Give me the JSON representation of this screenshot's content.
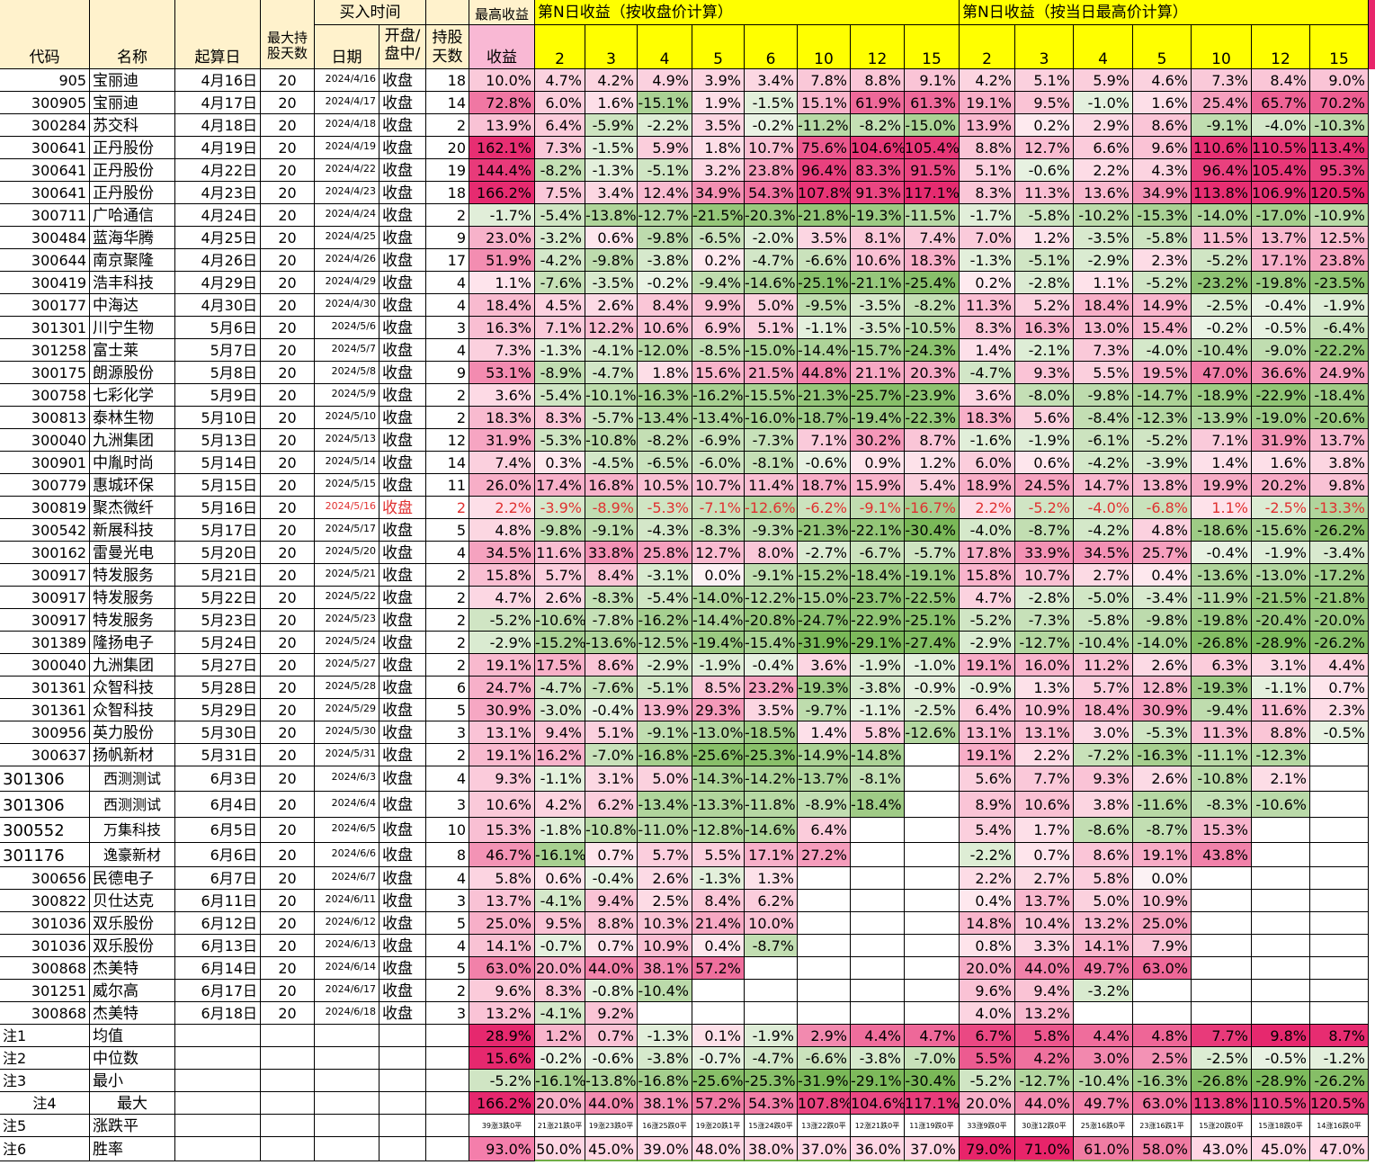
{
  "header": {
    "code": "代码",
    "name": "名称",
    "start_date": "起算日",
    "max_hold": "最大持股天数",
    "buy_time": "买入时间",
    "date": "日期",
    "open_mid": "开盘/盘中/",
    "hold_days": "持股天数",
    "max_profit_top": "最高收益",
    "profit": "收益",
    "group_close": "第N日收益（按收盘价计算）",
    "group_high": "第N日收益（按当日最高价计算）",
    "n_days": [
      "2",
      "3",
      "4",
      "5",
      "6",
      "10",
      "12",
      "15"
    ],
    "n_days_high": [
      "2",
      "3",
      "4",
      "5",
      "10",
      "12",
      "15"
    ]
  },
  "colors": {
    "header_fill": "#fff2cc",
    "profit_header_fill": "#f9b8d4",
    "yellow": "#ffff00",
    "stats_pink": "#ff99cc",
    "red_text": "#e03030",
    "win_border": "#70ad47"
  },
  "rows": [
    [
      "905",
      "宝丽迪",
      "4月16日",
      "20",
      "2024/4/16",
      "收盘",
      "18",
      "10.0%",
      "4.7%",
      "4.2%",
      "4.9%",
      "3.9%",
      "3.4%",
      "7.8%",
      "8.8%",
      "9.1%",
      "4.2%",
      "5.1%",
      "5.9%",
      "4.6%",
      "7.3%",
      "8.4%",
      "9.0%"
    ],
    [
      "300905",
      "宝丽迪",
      "4月17日",
      "20",
      "2024/4/17",
      "收盘",
      "14",
      "72.8%",
      "6.0%",
      "1.6%",
      "-15.1%",
      "1.9%",
      "-1.5%",
      "15.1%",
      "61.9%",
      "61.3%",
      "19.1%",
      "9.5%",
      "-1.0%",
      "1.6%",
      "25.4%",
      "65.7%",
      "70.2%"
    ],
    [
      "300284",
      "苏交科",
      "4月18日",
      "20",
      "2024/4/18",
      "收盘",
      "2",
      "13.9%",
      "6.4%",
      "-5.9%",
      "-2.2%",
      "3.5%",
      "-0.2%",
      "-11.2%",
      "-8.2%",
      "-15.0%",
      "13.9%",
      "0.2%",
      "2.9%",
      "8.6%",
      "-9.1%",
      "-4.0%",
      "-10.3%"
    ],
    [
      "300641",
      "正丹股份",
      "4月19日",
      "20",
      "2024/4/19",
      "收盘",
      "20",
      "162.1%",
      "7.3%",
      "-1.5%",
      "5.9%",
      "1.8%",
      "10.7%",
      "75.6%",
      "104.6%",
      "105.4%",
      "8.8%",
      "12.7%",
      "6.6%",
      "9.6%",
      "110.6%",
      "110.5%",
      "113.4%"
    ],
    [
      "300641",
      "正丹股份",
      "4月22日",
      "20",
      "2024/4/22",
      "收盘",
      "19",
      "144.4%",
      "-8.2%",
      "-1.3%",
      "-5.1%",
      "3.2%",
      "23.8%",
      "96.4%",
      "83.3%",
      "91.5%",
      "5.1%",
      "-0.6%",
      "2.2%",
      "4.3%",
      "96.4%",
      "105.4%",
      "95.3%"
    ],
    [
      "300641",
      "正丹股份",
      "4月23日",
      "20",
      "2024/4/23",
      "收盘",
      "18",
      "166.2%",
      "7.5%",
      "3.4%",
      "12.4%",
      "34.9%",
      "54.3%",
      "107.8%",
      "91.3%",
      "117.1%",
      "8.3%",
      "11.3%",
      "13.6%",
      "34.9%",
      "113.8%",
      "106.9%",
      "120.5%"
    ],
    [
      "300711",
      "广哈通信",
      "4月24日",
      "20",
      "2024/4/24",
      "收盘",
      "2",
      "-1.7%",
      "-5.4%",
      "-13.8%",
      "-12.7%",
      "-21.5%",
      "-20.3%",
      "-21.8%",
      "-19.3%",
      "-11.5%",
      "-1.7%",
      "-5.8%",
      "-10.2%",
      "-15.3%",
      "-14.0%",
      "-17.0%",
      "-10.9%"
    ],
    [
      "300484",
      "蓝海华腾",
      "4月25日",
      "20",
      "2024/4/25",
      "收盘",
      "9",
      "23.0%",
      "-3.2%",
      "0.6%",
      "-9.8%",
      "-6.5%",
      "-2.0%",
      "3.5%",
      "8.1%",
      "7.4%",
      "7.0%",
      "1.2%",
      "-3.5%",
      "-5.8%",
      "11.5%",
      "13.7%",
      "12.5%"
    ],
    [
      "300644",
      "南京聚隆",
      "4月26日",
      "20",
      "2024/4/26",
      "收盘",
      "17",
      "51.9%",
      "-4.2%",
      "-9.8%",
      "-3.8%",
      "0.2%",
      "-4.7%",
      "-6.6%",
      "10.6%",
      "18.3%",
      "-1.3%",
      "-5.1%",
      "-2.9%",
      "2.3%",
      "-5.2%",
      "17.1%",
      "23.8%"
    ],
    [
      "300419",
      "浩丰科技",
      "4月29日",
      "20",
      "2024/4/29",
      "收盘",
      "4",
      "1.1%",
      "-7.6%",
      "-3.5%",
      "-0.2%",
      "-9.4%",
      "-14.6%",
      "-25.1%",
      "-21.1%",
      "-25.4%",
      "0.2%",
      "-2.8%",
      "1.1%",
      "-5.2%",
      "-23.2%",
      "-19.8%",
      "-23.5%"
    ],
    [
      "300177",
      "中海达",
      "4月30日",
      "20",
      "2024/4/30",
      "收盘",
      "4",
      "18.4%",
      "4.5%",
      "2.6%",
      "8.4%",
      "9.9%",
      "5.0%",
      "-9.5%",
      "-3.5%",
      "-8.2%",
      "11.3%",
      "5.2%",
      "18.4%",
      "14.9%",
      "-2.5%",
      "-0.4%",
      "-1.9%"
    ],
    [
      "301301",
      "川宁生物",
      "5月6日",
      "20",
      "2024/5/6",
      "收盘",
      "3",
      "16.3%",
      "7.1%",
      "12.2%",
      "10.6%",
      "6.9%",
      "5.1%",
      "-1.1%",
      "-3.5%",
      "-10.5%",
      "8.3%",
      "16.3%",
      "13.0%",
      "15.4%",
      "-0.2%",
      "-0.5%",
      "-6.4%"
    ],
    [
      "301258",
      "富士莱",
      "5月7日",
      "20",
      "2024/5/7",
      "收盘",
      "4",
      "7.3%",
      "-1.3%",
      "-4.1%",
      "-12.0%",
      "-8.5%",
      "-15.0%",
      "-14.4%",
      "-15.7%",
      "-24.3%",
      "1.4%",
      "-2.1%",
      "7.3%",
      "-4.0%",
      "-10.4%",
      "-9.0%",
      "-22.2%"
    ],
    [
      "300175",
      "朗源股份",
      "5月8日",
      "20",
      "2024/5/8",
      "收盘",
      "9",
      "53.1%",
      "-8.9%",
      "-4.7%",
      "1.8%",
      "15.6%",
      "21.5%",
      "44.8%",
      "21.1%",
      "20.3%",
      "-4.7%",
      "9.3%",
      "5.5%",
      "19.5%",
      "47.0%",
      "36.6%",
      "24.9%"
    ],
    [
      "300758",
      "七彩化学",
      "5月9日",
      "20",
      "2024/5/9",
      "收盘",
      "2",
      "3.6%",
      "-5.4%",
      "-10.1%",
      "-16.3%",
      "-16.2%",
      "-15.5%",
      "-21.3%",
      "-25.7%",
      "-23.9%",
      "3.6%",
      "-8.0%",
      "-9.8%",
      "-14.7%",
      "-18.9%",
      "-22.9%",
      "-18.4%"
    ],
    [
      "300813",
      "泰林生物",
      "5月10日",
      "20",
      "2024/5/10",
      "收盘",
      "2",
      "18.3%",
      "8.3%",
      "-5.7%",
      "-13.4%",
      "-13.4%",
      "-16.0%",
      "-18.7%",
      "-19.4%",
      "-22.3%",
      "18.3%",
      "5.6%",
      "-8.4%",
      "-12.3%",
      "-13.9%",
      "-19.0%",
      "-20.6%"
    ],
    [
      "300040",
      "九洲集团",
      "5月13日",
      "20",
      "2024/5/13",
      "收盘",
      "12",
      "31.9%",
      "-5.3%",
      "-10.8%",
      "-8.2%",
      "-6.9%",
      "-7.3%",
      "7.1%",
      "30.2%",
      "8.7%",
      "-1.6%",
      "-1.9%",
      "-6.1%",
      "-5.2%",
      "7.1%",
      "31.9%",
      "13.7%"
    ],
    [
      "300901",
      "中胤时尚",
      "5月14日",
      "20",
      "2024/5/14",
      "收盘",
      "14",
      "7.4%",
      "0.3%",
      "-4.5%",
      "-6.5%",
      "-6.0%",
      "-8.1%",
      "-0.6%",
      "0.9%",
      "1.2%",
      "6.0%",
      "0.6%",
      "-4.2%",
      "-3.9%",
      "1.4%",
      "1.6%",
      "3.8%"
    ],
    [
      "300779",
      "惠城环保",
      "5月15日",
      "20",
      "2024/5/15",
      "收盘",
      "11",
      "26.0%",
      "17.4%",
      "16.8%",
      "10.5%",
      "10.7%",
      "11.4%",
      "18.7%",
      "15.9%",
      "5.4%",
      "18.9%",
      "24.5%",
      "14.7%",
      "13.8%",
      "19.9%",
      "20.2%",
      "9.8%"
    ],
    [
      "300819",
      "聚杰微纤",
      "5月16日",
      "20",
      "2024/5/16",
      "收盘",
      "2",
      "2.2%",
      "-3.9%",
      "-8.9%",
      "-5.3%",
      "-7.1%",
      "-12.6%",
      "-6.2%",
      "-9.1%",
      "-16.7%",
      "2.2%",
      "-5.2%",
      "-4.0%",
      "-6.8%",
      "1.1%",
      "-2.5%",
      "-13.3%"
    ],
    [
      "300542",
      "新展科技",
      "5月17日",
      "20",
      "2024/5/17",
      "收盘",
      "5",
      "4.8%",
      "-9.8%",
      "-9.1%",
      "-4.3%",
      "-8.3%",
      "-9.3%",
      "-21.3%",
      "-22.1%",
      "-30.4%",
      "-4.0%",
      "-8.7%",
      "-4.2%",
      "4.8%",
      "-18.6%",
      "-15.6%",
      "-26.2%"
    ],
    [
      "300162",
      "雷曼光电",
      "5月20日",
      "20",
      "2024/5/20",
      "收盘",
      "4",
      "34.5%",
      "11.6%",
      "33.8%",
      "25.8%",
      "12.7%",
      "8.0%",
      "-2.7%",
      "-6.7%",
      "-5.7%",
      "17.8%",
      "33.9%",
      "34.5%",
      "25.7%",
      "-0.4%",
      "-1.9%",
      "-3.4%"
    ],
    [
      "300917",
      "特发服务",
      "5月21日",
      "20",
      "2024/5/21",
      "收盘",
      "2",
      "15.8%",
      "5.7%",
      "8.4%",
      "-3.1%",
      "0.0%",
      "-9.1%",
      "-15.2%",
      "-18.4%",
      "-19.1%",
      "15.8%",
      "10.7%",
      "2.7%",
      "0.4%",
      "-13.6%",
      "-13.0%",
      "-17.2%"
    ],
    [
      "300917",
      "特发服务",
      "5月22日",
      "20",
      "2024/5/22",
      "收盘",
      "2",
      "4.7%",
      "2.6%",
      "-8.3%",
      "-5.4%",
      "-14.0%",
      "-12.2%",
      "-15.0%",
      "-23.7%",
      "-22.5%",
      "4.7%",
      "-2.8%",
      "-5.0%",
      "-3.4%",
      "-11.9%",
      "-21.5%",
      "-21.8%"
    ],
    [
      "300917",
      "特发服务",
      "5月23日",
      "20",
      "2024/5/23",
      "收盘",
      "2",
      "-5.2%",
      "-10.6%",
      "-7.8%",
      "-16.2%",
      "-14.4%",
      "-20.8%",
      "-24.7%",
      "-22.9%",
      "-25.1%",
      "-5.2%",
      "-7.3%",
      "-5.8%",
      "-9.8%",
      "-19.8%",
      "-20.4%",
      "-20.0%"
    ],
    [
      "301389",
      "隆扬电子",
      "5月24日",
      "20",
      "2024/5/24",
      "收盘",
      "2",
      "-2.9%",
      "-15.2%",
      "-13.6%",
      "-12.5%",
      "-19.4%",
      "-15.4%",
      "-31.9%",
      "-29.1%",
      "-27.4%",
      "-2.9%",
      "-12.7%",
      "-10.4%",
      "-14.0%",
      "-26.8%",
      "-28.9%",
      "-26.2%"
    ],
    [
      "300040",
      "九洲集团",
      "5月27日",
      "20",
      "2024/5/27",
      "收盘",
      "2",
      "19.1%",
      "17.5%",
      "8.6%",
      "-2.9%",
      "-1.9%",
      "-0.4%",
      "3.6%",
      "-1.9%",
      "-1.0%",
      "19.1%",
      "16.0%",
      "11.2%",
      "2.6%",
      "6.3%",
      "3.1%",
      "4.4%"
    ],
    [
      "301361",
      "众智科技",
      "5月28日",
      "20",
      "2024/5/28",
      "收盘",
      "6",
      "24.7%",
      "-4.7%",
      "-7.6%",
      "-5.1%",
      "8.5%",
      "23.2%",
      "-19.3%",
      "-3.8%",
      "-0.9%",
      "-0.9%",
      "1.3%",
      "5.7%",
      "12.8%",
      "-19.3%",
      "-1.1%",
      "0.7%"
    ],
    [
      "301361",
      "众智科技",
      "5月29日",
      "20",
      "2024/5/29",
      "收盘",
      "5",
      "30.9%",
      "-3.0%",
      "-0.4%",
      "13.9%",
      "29.3%",
      "3.5%",
      "-9.7%",
      "-1.1%",
      "-2.5%",
      "6.4%",
      "10.9%",
      "18.4%",
      "30.9%",
      "-9.4%",
      "11.6%",
      "2.3%"
    ],
    [
      "300956",
      "英力股份",
      "5月30日",
      "20",
      "2024/5/30",
      "收盘",
      "3",
      "13.1%",
      "9.4%",
      "5.1%",
      "-9.1%",
      "-13.0%",
      "-18.5%",
      "1.4%",
      "5.8%",
      "-12.6%",
      "13.1%",
      "13.1%",
      "3.0%",
      "-5.3%",
      "11.3%",
      "8.8%",
      "-0.5%"
    ],
    [
      "300637",
      "扬帆新材",
      "5月31日",
      "20",
      "2024/5/31",
      "收盘",
      "2",
      "19.1%",
      "16.2%",
      "-7.0%",
      "-16.8%",
      "-25.6%",
      "-25.3%",
      "-14.9%",
      "-14.8%",
      "",
      "19.1%",
      "2.2%",
      "-7.2%",
      "-16.3%",
      "-11.1%",
      "-12.3%",
      ""
    ],
    [
      "301306",
      "西测测试",
      "6月3日",
      "20",
      "2024/6/3",
      "收盘",
      "4",
      "9.3%",
      "-1.1%",
      "3.1%",
      "5.0%",
      "-14.3%",
      "-14.2%",
      "-13.7%",
      "-8.1%",
      "",
      "5.6%",
      "7.7%",
      "9.3%",
      "2.6%",
      "-10.8%",
      "2.1%",
      ""
    ],
    [
      "301306",
      "西测测试",
      "6月4日",
      "20",
      "2024/6/4",
      "收盘",
      "3",
      "10.6%",
      "4.2%",
      "6.2%",
      "-13.4%",
      "-13.3%",
      "-11.8%",
      "-8.9%",
      "-18.4%",
      "",
      "8.9%",
      "10.6%",
      "3.8%",
      "-11.6%",
      "-8.3%",
      "-10.6%",
      ""
    ],
    [
      "300552",
      "万集科技",
      "6月5日",
      "20",
      "2024/6/5",
      "收盘",
      "10",
      "15.3%",
      "-1.8%",
      "-10.8%",
      "-11.0%",
      "-12.8%",
      "-14.6%",
      "6.4%",
      "",
      "",
      "5.4%",
      "1.7%",
      "-8.6%",
      "-8.7%",
      "15.3%",
      "",
      ""
    ],
    [
      "301176",
      "逸豪新材",
      "6月6日",
      "20",
      "2024/6/6",
      "收盘",
      "8",
      "46.7%",
      "-16.1%",
      "0.7%",
      "5.7%",
      "5.5%",
      "17.1%",
      "27.2%",
      "",
      "",
      "-2.2%",
      "0.7%",
      "8.6%",
      "19.1%",
      "43.8%",
      "",
      ""
    ],
    [
      "300656",
      "民德电子",
      "6月7日",
      "20",
      "2024/6/7",
      "收盘",
      "4",
      "5.8%",
      "0.6%",
      "-0.4%",
      "2.6%",
      "-1.3%",
      "1.3%",
      "",
      "",
      "",
      "2.2%",
      "2.7%",
      "5.8%",
      "0.0%",
      "",
      "",
      ""
    ],
    [
      "300822",
      "贝仕达克",
      "6月11日",
      "20",
      "2024/6/11",
      "收盘",
      "3",
      "13.7%",
      "-4.1%",
      "9.4%",
      "2.5%",
      "8.4%",
      "6.2%",
      "",
      "",
      "",
      "0.4%",
      "13.7%",
      "5.0%",
      "10.9%",
      "",
      "",
      ""
    ],
    [
      "301036",
      "双乐股份",
      "6月12日",
      "20",
      "2024/6/12",
      "收盘",
      "5",
      "25.0%",
      "9.5%",
      "8.8%",
      "10.3%",
      "21.4%",
      "10.0%",
      "",
      "",
      "",
      "14.8%",
      "10.4%",
      "13.2%",
      "25.0%",
      "",
      "",
      ""
    ],
    [
      "301036",
      "双乐股份",
      "6月13日",
      "20",
      "2024/6/13",
      "收盘",
      "4",
      "14.1%",
      "-0.7%",
      "0.7%",
      "10.9%",
      "0.4%",
      "-8.7%",
      "",
      "",
      "",
      "0.8%",
      "3.3%",
      "14.1%",
      "7.9%",
      "",
      "",
      ""
    ],
    [
      "300868",
      "杰美特",
      "6月14日",
      "20",
      "2024/6/14",
      "收盘",
      "5",
      "63.0%",
      "20.0%",
      "44.0%",
      "38.1%",
      "57.2%",
      "",
      "",
      "",
      "",
      "20.0%",
      "44.0%",
      "49.7%",
      "63.0%",
      "",
      "",
      ""
    ],
    [
      "301251",
      "威尔高",
      "6月17日",
      "20",
      "2024/6/17",
      "收盘",
      "2",
      "9.6%",
      "8.3%",
      "-0.8%",
      "-10.4%",
      "",
      "",
      "",
      "",
      "",
      "9.6%",
      "9.4%",
      "-3.2%",
      "",
      "",
      "",
      ""
    ],
    [
      "300868",
      "杰美特",
      "6月18日",
      "20",
      "2024/6/18",
      "收盘",
      "3",
      "13.2%",
      "-4.1%",
      "9.2%",
      "",
      "",
      "",
      "",
      "",
      "",
      "4.0%",
      "13.2%",
      "",
      "",
      "",
      "",
      ""
    ]
  ],
  "stats": [
    {
      "note": "注1",
      "label": "均值",
      "vals": [
        "28.9%",
        "1.2%",
        "0.7%",
        "-1.3%",
        "0.1%",
        "-1.9%",
        "2.9%",
        "4.4%",
        "4.7%",
        "6.7%",
        "5.8%",
        "4.4%",
        "4.8%",
        "7.7%",
        "9.8%",
        "8.7%"
      ]
    },
    {
      "note": "注2",
      "label": "中位数",
      "vals": [
        "15.6%",
        "-0.2%",
        "-0.6%",
        "-3.8%",
        "-0.7%",
        "-4.7%",
        "-6.6%",
        "-3.8%",
        "-7.0%",
        "5.5%",
        "4.2%",
        "3.0%",
        "2.5%",
        "-2.5%",
        "-0.5%",
        "-1.2%"
      ]
    },
    {
      "note": "注3",
      "label": "最小",
      "vals": [
        "-5.2%",
        "-16.1%",
        "-13.8%",
        "-16.8%",
        "-25.6%",
        "-25.3%",
        "-31.9%",
        "-29.1%",
        "-30.4%",
        "-5.2%",
        "-12.7%",
        "-10.4%",
        "-16.3%",
        "-26.8%",
        "-28.9%",
        "-26.2%"
      ]
    },
    {
      "note": "注4",
      "label": "最大",
      "vals": [
        "166.2%",
        "20.0%",
        "44.0%",
        "38.1%",
        "57.2%",
        "54.3%",
        "107.8%",
        "104.6%",
        "117.1%",
        "20.0%",
        "44.0%",
        "49.7%",
        "63.0%",
        "113.8%",
        "110.5%",
        "120.5%"
      ]
    },
    {
      "note": "注5",
      "label": "涨跌平",
      "vals": [
        "39涨3跌0平",
        "21涨21跌0平",
        "19涨23跌0平",
        "16涨25跌0平",
        "19涨20跌1平",
        "15涨24跌0平",
        "13涨22跌0平",
        "12涨21跌0平",
        "11涨19跌0平",
        "33涨9跌0平",
        "30涨12跌0平",
        "25涨16跌0平",
        "23涨16跌1平",
        "15涨20跌0平",
        "15涨18跌0平",
        "14涨16跌0平"
      ]
    },
    {
      "note": "注6",
      "label": "胜率",
      "vals": [
        "93.0%",
        "50.0%",
        "45.0%",
        "39.0%",
        "48.0%",
        "38.0%",
        "37.0%",
        "36.0%",
        "37.0%",
        "79.0%",
        "71.0%",
        "61.0%",
        "58.0%",
        "43.0%",
        "45.0%",
        "47.0%"
      ]
    }
  ]
}
